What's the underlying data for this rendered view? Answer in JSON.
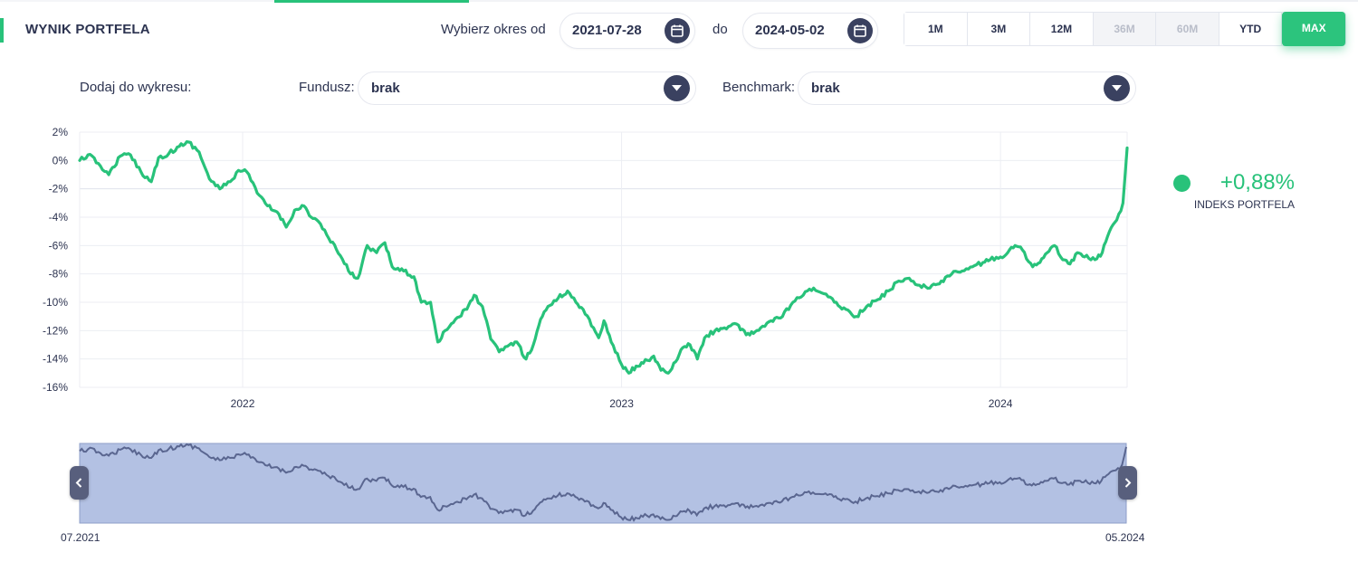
{
  "header": {
    "title": "WYNIK PORTFELA",
    "range_from_label": "Wybierz okres od",
    "range_to_label": "do",
    "date_from": "2021-07-28",
    "date_to": "2024-05-02"
  },
  "periods": [
    {
      "label": "1M",
      "state": "enabled"
    },
    {
      "label": "3M",
      "state": "enabled"
    },
    {
      "label": "12M",
      "state": "enabled"
    },
    {
      "label": "36M",
      "state": "disabled"
    },
    {
      "label": "60M",
      "state": "disabled"
    },
    {
      "label": "YTD",
      "state": "enabled"
    },
    {
      "label": "MAX",
      "state": "active"
    }
  ],
  "add_to_chart": {
    "label": "Dodaj do wykresu:",
    "fund_label": "Fundusz:",
    "fund_value": "brak",
    "benchmark_label": "Benchmark:",
    "benchmark_value": "brak"
  },
  "legend": {
    "value": "+0,88%",
    "name": "INDEKS PORTFELA"
  },
  "navigator": {
    "start_label": "07.2021",
    "end_label": "05.2024"
  },
  "colors": {
    "series": "#28c27a",
    "accent": "#2cc47d",
    "navigator_fill": "#b3c1e3",
    "navigator_line": "#5a6690",
    "button_dark": "#3a4160"
  },
  "chart_data": {
    "type": "line",
    "xlabel": "",
    "ylabel": "",
    "x_range": [
      "2021-07-28",
      "2024-05-02"
    ],
    "ylim": [
      -16,
      2
    ],
    "y_ticks": [
      2,
      0,
      -2,
      -4,
      -6,
      -8,
      -10,
      -12,
      -14,
      -16
    ],
    "y_tick_labels": [
      "2%",
      "0%",
      "-2%",
      "-4%",
      "-6%",
      "-8%",
      "-10%",
      "-12%",
      "-14%",
      "-16%"
    ],
    "x_ticks": [
      "2022-01-01",
      "2023-01-01",
      "2024-01-01"
    ],
    "x_tick_labels": [
      "2022",
      "2023",
      "2024"
    ],
    "grid": true,
    "series": [
      {
        "points": [
          [
            "2021-07-28",
            0.0
          ],
          [
            "2021-08-05",
            0.4
          ],
          [
            "2021-08-15",
            -0.2
          ],
          [
            "2021-08-25",
            -1.0
          ],
          [
            "2021-09-05",
            0.3
          ],
          [
            "2021-09-15",
            0.4
          ],
          [
            "2021-09-25",
            -0.8
          ],
          [
            "2021-10-05",
            -1.5
          ],
          [
            "2021-10-12",
            0.2
          ],
          [
            "2021-10-22",
            0.5
          ],
          [
            "2021-11-01",
            1.0
          ],
          [
            "2021-11-10",
            1.3
          ],
          [
            "2021-11-20",
            0.6
          ],
          [
            "2021-11-30",
            -1.3
          ],
          [
            "2021-12-10",
            -2.0
          ],
          [
            "2021-12-20",
            -1.5
          ],
          [
            "2021-12-28",
            -0.7
          ],
          [
            "2022-01-05",
            -0.8
          ],
          [
            "2022-01-15",
            -2.3
          ],
          [
            "2022-01-25",
            -3.2
          ],
          [
            "2022-02-05",
            -3.8
          ],
          [
            "2022-02-12",
            -4.7
          ],
          [
            "2022-02-20",
            -3.5
          ],
          [
            "2022-03-01",
            -3.2
          ],
          [
            "2022-03-08",
            -4.0
          ],
          [
            "2022-03-15",
            -4.3
          ],
          [
            "2022-03-25",
            -5.5
          ],
          [
            "2022-04-05",
            -6.7
          ],
          [
            "2022-04-15",
            -8.0
          ],
          [
            "2022-04-22",
            -8.3
          ],
          [
            "2022-05-01",
            -6.0
          ],
          [
            "2022-05-10",
            -6.5
          ],
          [
            "2022-05-18",
            -5.8
          ],
          [
            "2022-05-25",
            -7.5
          ],
          [
            "2022-06-05",
            -7.8
          ],
          [
            "2022-06-15",
            -8.2
          ],
          [
            "2022-06-22",
            -10.0
          ],
          [
            "2022-07-01",
            -10.0
          ],
          [
            "2022-07-08",
            -12.8
          ],
          [
            "2022-07-15",
            -12.0
          ],
          [
            "2022-07-25",
            -11.2
          ],
          [
            "2022-08-05",
            -10.5
          ],
          [
            "2022-08-12",
            -9.5
          ],
          [
            "2022-08-20",
            -10.3
          ],
          [
            "2022-08-28",
            -12.6
          ],
          [
            "2022-09-05",
            -13.5
          ],
          [
            "2022-09-15",
            -13.0
          ],
          [
            "2022-09-22",
            -12.8
          ],
          [
            "2022-10-01",
            -14.0
          ],
          [
            "2022-10-08",
            -13.0
          ],
          [
            "2022-10-15",
            -11.2
          ],
          [
            "2022-10-22",
            -10.3
          ],
          [
            "2022-11-01",
            -9.7
          ],
          [
            "2022-11-10",
            -9.2
          ],
          [
            "2022-11-18",
            -10.0
          ],
          [
            "2022-11-25",
            -10.5
          ],
          [
            "2022-12-05",
            -11.8
          ],
          [
            "2022-12-10",
            -12.5
          ],
          [
            "2022-12-15",
            -11.3
          ],
          [
            "2022-12-22",
            -12.8
          ],
          [
            "2023-01-01",
            -14.4
          ],
          [
            "2023-01-08",
            -15.0
          ],
          [
            "2023-01-15",
            -14.5
          ],
          [
            "2023-01-22",
            -14.3
          ],
          [
            "2023-02-01",
            -13.8
          ],
          [
            "2023-02-08",
            -14.8
          ],
          [
            "2023-02-15",
            -15.0
          ],
          [
            "2023-02-22",
            -14.2
          ],
          [
            "2023-03-01",
            -13.2
          ],
          [
            "2023-03-08",
            -13.0
          ],
          [
            "2023-03-15",
            -14.0
          ],
          [
            "2023-03-22",
            -12.5
          ],
          [
            "2023-04-01",
            -12.0
          ],
          [
            "2023-04-10",
            -11.8
          ],
          [
            "2023-04-20",
            -11.5
          ],
          [
            "2023-05-01",
            -12.3
          ],
          [
            "2023-05-08",
            -12.2
          ],
          [
            "2023-05-15",
            -11.8
          ],
          [
            "2023-05-25",
            -11.3
          ],
          [
            "2023-06-05",
            -11.0
          ],
          [
            "2023-06-15",
            -10.0
          ],
          [
            "2023-06-25",
            -9.5
          ],
          [
            "2023-07-05",
            -9.0
          ],
          [
            "2023-07-15",
            -9.4
          ],
          [
            "2023-07-25",
            -10.0
          ],
          [
            "2023-08-05",
            -10.5
          ],
          [
            "2023-08-15",
            -11.0
          ],
          [
            "2023-08-25",
            -10.3
          ],
          [
            "2023-09-05",
            -9.8
          ],
          [
            "2023-09-15",
            -9.2
          ],
          [
            "2023-09-25",
            -8.5
          ],
          [
            "2023-10-05",
            -8.3
          ],
          [
            "2023-10-15",
            -8.8
          ],
          [
            "2023-10-25",
            -9.0
          ],
          [
            "2023-11-05",
            -8.5
          ],
          [
            "2023-11-15",
            -8.0
          ],
          [
            "2023-11-25",
            -7.8
          ],
          [
            "2023-12-05",
            -7.5
          ],
          [
            "2023-12-15",
            -7.2
          ],
          [
            "2023-12-22",
            -7.0
          ],
          [
            "2024-01-01",
            -6.8
          ],
          [
            "2024-01-08",
            -6.5
          ],
          [
            "2024-01-15",
            -6.0
          ],
          [
            "2024-01-22",
            -6.3
          ],
          [
            "2024-02-01",
            -7.5
          ],
          [
            "2024-02-08",
            -7.2
          ],
          [
            "2024-02-15",
            -6.5
          ],
          [
            "2024-02-22",
            -6.0
          ],
          [
            "2024-03-01",
            -7.0
          ],
          [
            "2024-03-08",
            -7.3
          ],
          [
            "2024-03-15",
            -6.5
          ],
          [
            "2024-03-22",
            -6.8
          ],
          [
            "2024-04-01",
            -7.0
          ],
          [
            "2024-04-08",
            -6.5
          ],
          [
            "2024-04-15",
            -5.0
          ],
          [
            "2024-04-22",
            -4.2
          ],
          [
            "2024-04-28",
            -3.0
          ],
          [
            "2024-05-02",
            0.88
          ]
        ]
      }
    ]
  }
}
